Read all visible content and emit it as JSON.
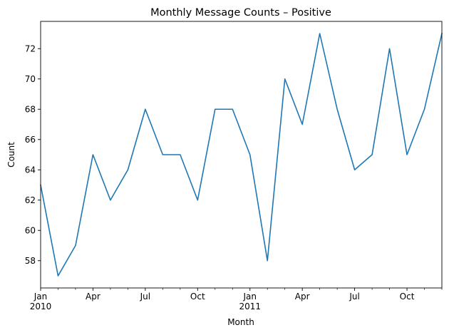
{
  "chart_data": {
    "type": "line",
    "title": "Monthly Message Counts – Positive",
    "xlabel": "Month",
    "ylabel": "Count",
    "x": [
      "2010-01",
      "2010-02",
      "2010-03",
      "2010-04",
      "2010-05",
      "2010-06",
      "2010-07",
      "2010-08",
      "2010-09",
      "2010-10",
      "2010-11",
      "2010-12",
      "2011-01",
      "2011-02",
      "2011-03",
      "2011-04",
      "2011-05",
      "2011-06",
      "2011-07",
      "2011-08",
      "2011-09",
      "2011-10",
      "2011-11",
      "2011-12"
    ],
    "series": [
      {
        "values": [
          63,
          57,
          59,
          65,
          62,
          64,
          68,
          65,
          65,
          62,
          68,
          68,
          65,
          58,
          70,
          67,
          73,
          68,
          64,
          65,
          72,
          65,
          68,
          73
        ],
        "color": "#1f77b4"
      }
    ],
    "ylim": [
      56.2,
      73.8
    ],
    "y_ticks": [
      "58",
      "60",
      "62",
      "64",
      "66",
      "68",
      "70",
      "72"
    ],
    "x_major_ticks": [
      {
        "month": "2010-01",
        "label": "Jan",
        "sublabel": "2010"
      },
      {
        "month": "2010-04",
        "label": "Apr",
        "sublabel": ""
      },
      {
        "month": "2010-07",
        "label": "Jul",
        "sublabel": ""
      },
      {
        "month": "2010-10",
        "label": "Oct",
        "sublabel": ""
      },
      {
        "month": "2011-01",
        "label": "Jan",
        "sublabel": "2011"
      },
      {
        "month": "2011-04",
        "label": "Apr",
        "sublabel": ""
      },
      {
        "month": "2011-07",
        "label": "Jul",
        "sublabel": ""
      },
      {
        "month": "2011-10",
        "label": "Oct",
        "sublabel": ""
      }
    ],
    "grid": false,
    "legend": "none"
  }
}
